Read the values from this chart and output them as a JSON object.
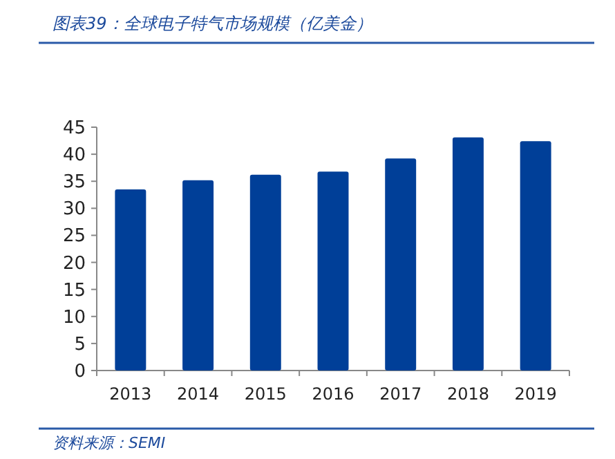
{
  "chart_data": {
    "type": "bar",
    "title": "图表39：全球电子特气市场规模（亿美金）",
    "categories": [
      "2013",
      "2014",
      "2015",
      "2016",
      "2017",
      "2018",
      "2019"
    ],
    "values": [
      33.5,
      35.2,
      36.2,
      36.8,
      39.2,
      43.1,
      42.4
    ],
    "color": "#003f98",
    "ylim": [
      0,
      45
    ],
    "yticks": [
      0,
      5,
      10,
      15,
      20,
      25,
      30,
      35,
      40,
      45
    ],
    "grid": false,
    "annotations": [
      "资料来源：SEMI"
    ]
  }
}
